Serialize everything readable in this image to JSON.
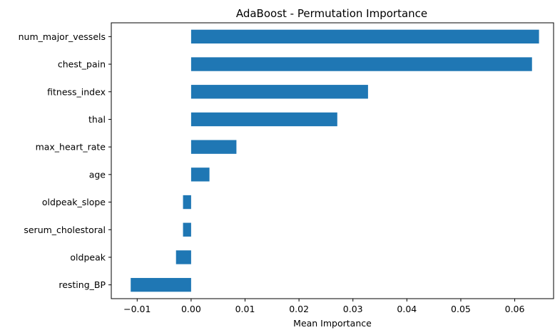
{
  "chart_data": {
    "type": "bar",
    "orientation": "horizontal",
    "title": "AdaBoost - Permutation Importance",
    "xlabel": "Mean Importance",
    "ylabel": "",
    "categories": [
      "num_major_vessels",
      "chest_pain",
      "fitness_index",
      "thal",
      "max_heart_rate",
      "age",
      "oldpeak_slope",
      "serum_cholestoral",
      "oldpeak",
      "resting_BP "
    ],
    "values": [
      0.0645,
      0.0632,
      0.0328,
      0.0271,
      0.0084,
      0.0034,
      -0.0015,
      -0.0015,
      -0.0028,
      -0.0112
    ],
    "xlim": [
      -0.0148,
      0.0672
    ],
    "xticks": [
      -0.01,
      0.0,
      0.01,
      0.02,
      0.03,
      0.04,
      0.05,
      0.06
    ],
    "xtick_labels": [
      "−0.01",
      "0.00",
      "0.01",
      "0.02",
      "0.03",
      "0.04",
      "0.05",
      "0.06"
    ],
    "bar_color": "#1f77b4",
    "grid": false,
    "legend": "none"
  }
}
